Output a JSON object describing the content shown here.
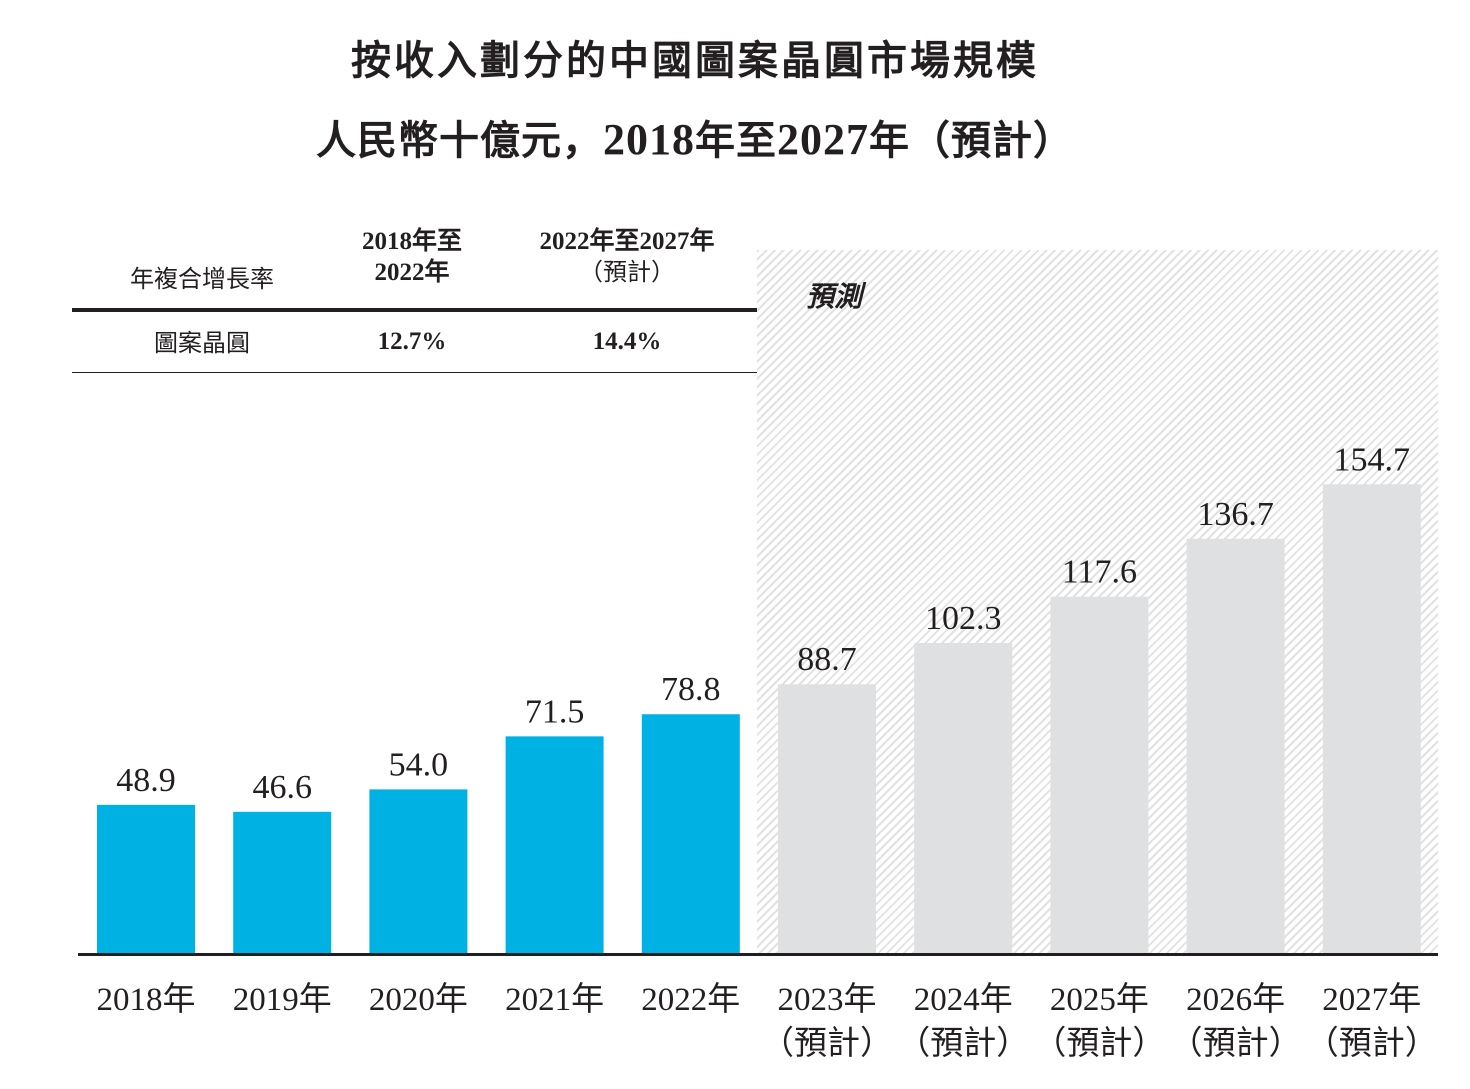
{
  "chart_data": {
    "type": "bar",
    "title": "按收入劃分的中國圖案晶圓市場規模",
    "subtitle": "人民幣十億元，2018年至2027年（預計）",
    "xlabel": "",
    "ylabel": "人民幣十億元",
    "categories": [
      "2018年",
      "2019年",
      "2020年",
      "2021年",
      "2022年",
      "2023年",
      "2024年",
      "2025年",
      "2026年",
      "2027年"
    ],
    "category_sublabels": [
      "",
      "",
      "",
      "",
      "",
      "（預計）",
      "（預計）",
      "（預計）",
      "（預計）",
      "（預計）"
    ],
    "values": [
      48.9,
      46.6,
      54.0,
      71.5,
      78.8,
      88.7,
      102.3,
      117.6,
      136.7,
      154.7
    ],
    "value_labels": [
      "48.9",
      "46.6",
      "54.0",
      "71.5",
      "78.8",
      "88.7",
      "102.3",
      "117.6",
      "136.7",
      "154.7"
    ],
    "forecast_from_index": 5,
    "forecast_annotation": "預測",
    "colors": {
      "actual": "#00b2e3",
      "forecast": "#dfe0e2",
      "axis": "#231f20"
    },
    "ylim": [
      0,
      160
    ],
    "grid": false,
    "legend": "none"
  },
  "cagr_table": {
    "header_label": "年複合增長率",
    "columns": [
      {
        "line1": "2018年至",
        "line2": "2022年"
      },
      {
        "line1": "2022年至2027年",
        "line2": "（預計）"
      }
    ],
    "rows": [
      {
        "label": "圖案晶圓",
        "values": [
          "12.7%",
          "14.4%"
        ]
      }
    ]
  },
  "title_parts": {
    "line1": "按收入劃分的中國圖案晶圓市場規模",
    "line2_a": "人民幣十億元，",
    "line2_b": "2018",
    "line2_c": "年至",
    "line2_d": "2027",
    "line2_e": "年（預計）"
  }
}
